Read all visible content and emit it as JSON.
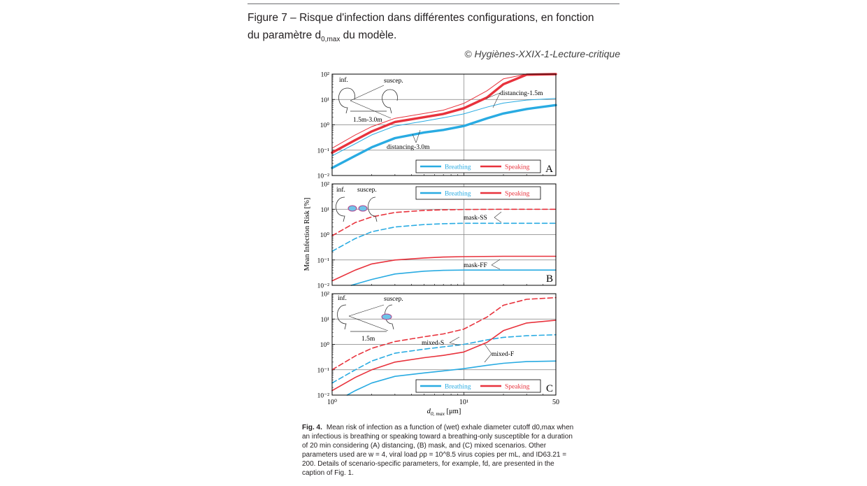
{
  "header": {
    "title_line1": "Figure 7 – Risque d'infection dans différentes configurations, en fonction",
    "title_line2_pre": "du paramètre d",
    "title_line2_sub": "0,max",
    "title_line2_post": " du modèle.",
    "credit": "© Hygiènes-XXIX-1-Lecture-critique"
  },
  "colors": {
    "breathing": "#29abe2",
    "speaking": "#e8323c",
    "grid": "#7f7f7f",
    "frame": "#000000"
  },
  "chart_data": [
    {
      "type": "line",
      "panel": "A",
      "x_scale": "log",
      "y_scale": "log",
      "xlim": [
        1,
        50
      ],
      "ylim": [
        0.01,
        100
      ],
      "grid": true,
      "legend_position": "bottom-right",
      "legend": [
        "Breathing",
        "Speaking"
      ],
      "series": [
        {
          "group": "Breathing",
          "style": "thick",
          "x": [
            1,
            1.5,
            2,
            3,
            5,
            7,
            10,
            15,
            20,
            30,
            50
          ],
          "y": [
            0.02,
            0.06,
            0.13,
            0.3,
            0.5,
            0.63,
            0.9,
            1.8,
            2.8,
            4.2,
            6.0
          ]
        },
        {
          "group": "Breathing",
          "style": "thin",
          "x": [
            1,
            1.5,
            2,
            3,
            5,
            7,
            10,
            15,
            20,
            30,
            50
          ],
          "y": [
            0.06,
            0.18,
            0.4,
            0.9,
            1.4,
            1.9,
            2.7,
            5.0,
            7.2,
            9.5,
            11.0
          ]
        },
        {
          "group": "Speaking",
          "style": "thick",
          "x": [
            1,
            1.5,
            2,
            3,
            5,
            7,
            10,
            15,
            20,
            30,
            50
          ],
          "y": [
            0.08,
            0.25,
            0.55,
            1.3,
            2.0,
            2.7,
            4.5,
            12,
            40,
            95,
            100
          ]
        },
        {
          "group": "Speaking",
          "style": "thin",
          "x": [
            1,
            1.5,
            2,
            3,
            5,
            7,
            10,
            15,
            20,
            30,
            50
          ],
          "y": [
            0.12,
            0.4,
            0.85,
            1.8,
            2.8,
            3.8,
            7.0,
            22,
            65,
            100,
            100
          ]
        }
      ],
      "annotations": [
        "inf.",
        "suscep.",
        "1.5m-3.0m",
        "distancing-1.5m",
        "distancing-3.0m",
        "A"
      ]
    },
    {
      "type": "line",
      "panel": "B",
      "x_scale": "log",
      "y_scale": "log",
      "xlim": [
        1,
        50
      ],
      "ylim": [
        0.01,
        100
      ],
      "grid": true,
      "legend_position": "top",
      "legend": [
        "Breathing",
        "Speaking"
      ],
      "ylabel": "Mean Infection Risk  [%]",
      "series": [
        {
          "group": "Speaking",
          "style": "dashed",
          "x": [
            1,
            1.5,
            2,
            3,
            5,
            7,
            10,
            20,
            50
          ],
          "y": [
            0.9,
            3.0,
            5.0,
            7.5,
            9.0,
            9.5,
            9.8,
            10,
            10
          ]
        },
        {
          "group": "Breathing",
          "style": "dashed",
          "x": [
            1,
            1.5,
            2,
            3,
            5,
            7,
            10,
            20,
            50
          ],
          "y": [
            0.22,
            0.7,
            1.3,
            2.0,
            2.5,
            2.7,
            2.8,
            2.8,
            2.8
          ]
        },
        {
          "group": "Speaking",
          "style": "solid",
          "x": [
            1,
            1.5,
            2,
            3,
            5,
            7,
            10,
            20,
            50
          ],
          "y": [
            0.015,
            0.04,
            0.07,
            0.1,
            0.12,
            0.13,
            0.135,
            0.14,
            0.14
          ]
        },
        {
          "group": "Breathing",
          "style": "solid",
          "x": [
            1.4,
            2,
            3,
            5,
            7,
            10,
            20,
            50
          ],
          "y": [
            0.01,
            0.017,
            0.028,
            0.036,
            0.039,
            0.04,
            0.04,
            0.04
          ]
        }
      ],
      "annotations": [
        "inf.",
        "suscep.",
        "mask-SS",
        "mask-FF",
        "B"
      ]
    },
    {
      "type": "line",
      "panel": "C",
      "x_scale": "log",
      "y_scale": "log",
      "xlim": [
        1,
        50
      ],
      "ylim": [
        0.01,
        100
      ],
      "grid": true,
      "legend_position": "bottom-right",
      "legend": [
        "Breathing",
        "Speaking"
      ],
      "xlabel": "d0, max [μm]",
      "x_ticks": [
        "10⁰",
        "10¹",
        "50"
      ],
      "series": [
        {
          "group": "Speaking",
          "style": "dashed",
          "x": [
            1,
            1.5,
            2,
            3,
            5,
            7,
            10,
            15,
            20,
            30,
            50
          ],
          "y": [
            0.1,
            0.35,
            0.7,
            1.3,
            2.0,
            2.6,
            4.0,
            12,
            35,
            60,
            70
          ]
        },
        {
          "group": "Breathing",
          "style": "dashed",
          "x": [
            1,
            1.5,
            2,
            3,
            5,
            7,
            10,
            15,
            20,
            30,
            50
          ],
          "y": [
            0.03,
            0.1,
            0.22,
            0.45,
            0.65,
            0.8,
            1.0,
            1.5,
            1.9,
            2.2,
            2.4
          ]
        },
        {
          "group": "Speaking",
          "style": "solid",
          "x": [
            1,
            1.5,
            2,
            3,
            5,
            7,
            10,
            15,
            20,
            30,
            50
          ],
          "y": [
            0.015,
            0.05,
            0.1,
            0.2,
            0.3,
            0.37,
            0.5,
            1.2,
            3.5,
            7.0,
            9.0
          ]
        },
        {
          "group": "Breathing",
          "style": "solid",
          "x": [
            1.3,
            1.5,
            2,
            3,
            5,
            7,
            10,
            15,
            20,
            30,
            50
          ],
          "y": [
            0.01,
            0.015,
            0.03,
            0.055,
            0.075,
            0.09,
            0.11,
            0.15,
            0.18,
            0.21,
            0.22
          ]
        }
      ],
      "annotations": [
        "inf.",
        "suscep.",
        "1.5m",
        "mixed-S",
        "mixed-F",
        "C"
      ]
    }
  ],
  "figure": {
    "y_ticks": [
      "10²",
      "10¹",
      "10⁰",
      "10⁻¹",
      "10⁻²"
    ],
    "x_ticks": [
      "10⁰",
      "10¹",
      "50"
    ],
    "ylabel": "Mean Infection Risk  [%]",
    "xlabel_pre": "d",
    "xlabel_sub": "0, max",
    "xlabel_post": " [μm]",
    "legend_breathing": "Breathing",
    "legend_speaking": "Speaking",
    "panel_a": {
      "letter": "A",
      "label_inf": "inf.",
      "label_suscep": "suscep.",
      "label_range": "1.5m-3.0m",
      "label_d15": "distancing-1.5m",
      "label_d30": "distancing-3.0m"
    },
    "panel_b": {
      "letter": "B",
      "label_inf": "inf.",
      "label_suscep": "suscep.",
      "label_ss": "mask-SS",
      "label_ff": "mask-FF"
    },
    "panel_c": {
      "letter": "C",
      "label_inf": "inf.",
      "label_suscep": "suscep.",
      "label_range": "1.5m",
      "label_s": "mixed-S",
      "label_f": "mixed-F"
    }
  },
  "caption": {
    "lead": "Fig. 4.",
    "text": "Mean risk of infection as a function of (wet) exhale diameter cutoff d0,max when an infectious is breathing or speaking toward a breathing-only susceptible for a duration of 20 min considering (A) distancing, (B) mask, and (C) mixed scenarios. Other parameters used are w = 4, viral load ρp = 10^8.5 virus copies per mL, and ID63.21 = 200. Details of scenario-specific parameters, for example, fd, are presented in the caption of Fig. 1."
  }
}
